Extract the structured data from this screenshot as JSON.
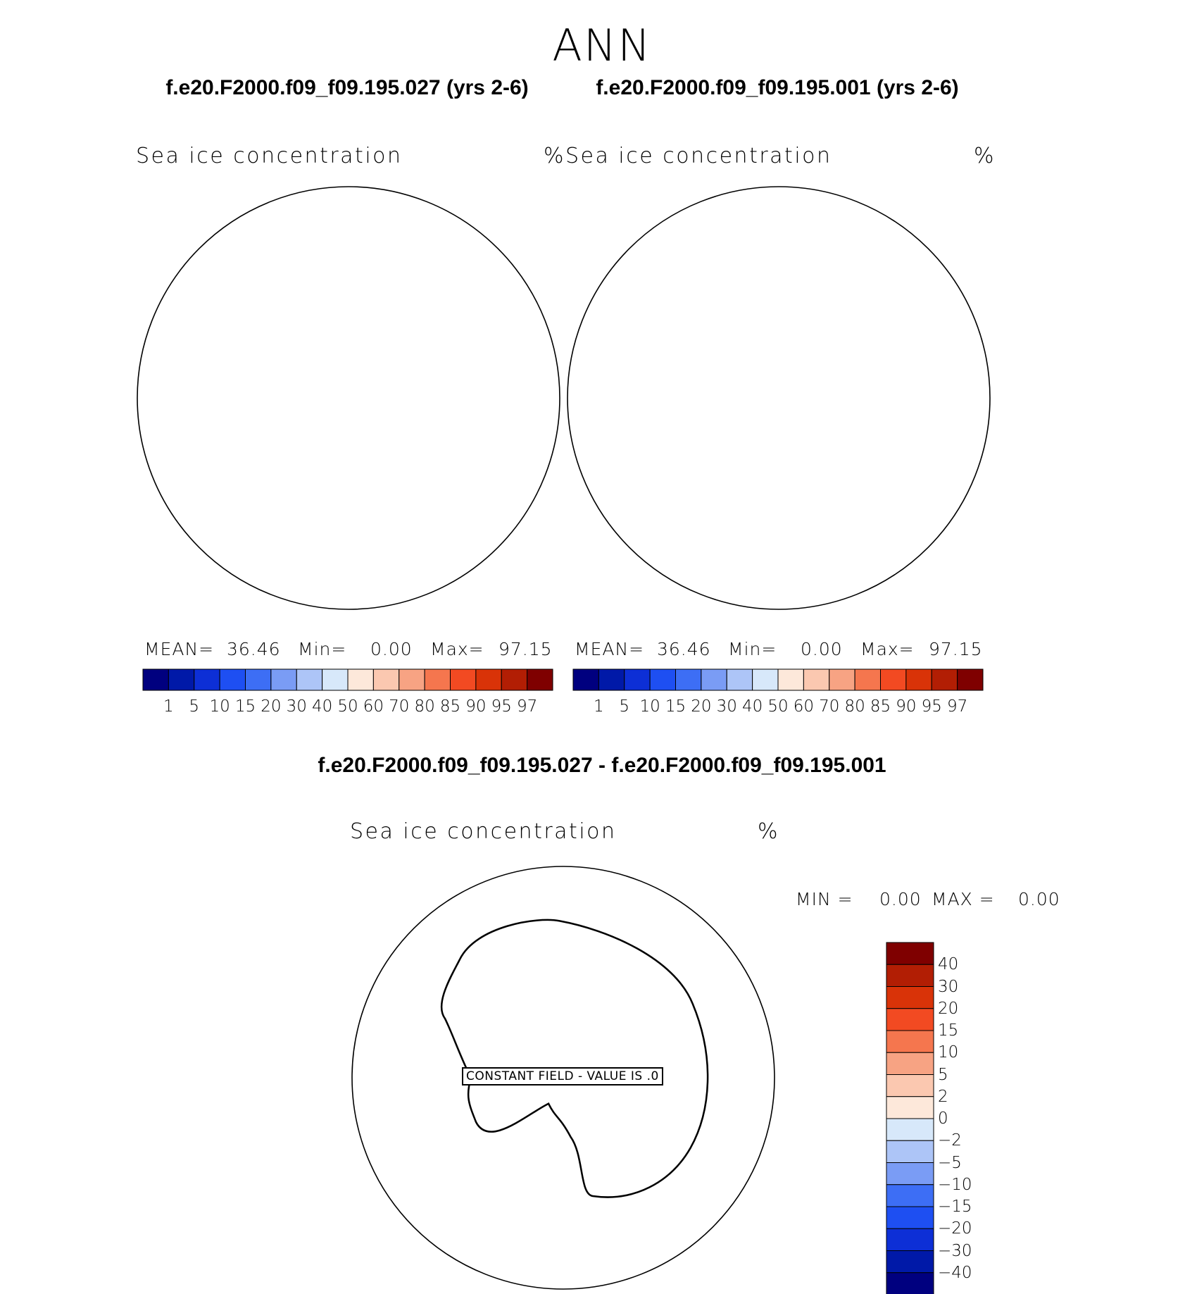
{
  "title": "ANN",
  "panels": [
    {
      "case_title": "f.e20.F2000.f09_f09.195.027 (yrs 2-6)",
      "var_label": "Sea ice concentration",
      "units": "%",
      "stats": {
        "mean_label": "MEAN=",
        "mean": "36.46",
        "min_label": "Min=",
        "min": "0.00",
        "max_label": "Max=",
        "max": "97.15"
      }
    },
    {
      "case_title": "f.e20.F2000.f09_f09.195.001 (yrs 2-6)",
      "var_label": "Sea ice concentration",
      "units": "%",
      "stats": {
        "mean_label": "MEAN=",
        "mean": "36.46",
        "min_label": "Min=",
        "min": "0.00",
        "max_label": "Max=",
        "max": "97.15"
      }
    }
  ],
  "diff": {
    "title": "f.e20.F2000.f09_f09.195.027 - f.e20.F2000.f09_f09.195.001",
    "var_label": "Sea ice concentration",
    "units": "%",
    "stats": {
      "min_label": "MIN =",
      "min": "0.00",
      "max_label": "MAX =",
      "max": "0.00"
    },
    "constant_text": "CONSTANT FIELD - VALUE IS .0"
  },
  "chart_data": {
    "type": "heatmap",
    "projection": "south-polar-stereographic",
    "field": "Sea ice concentration",
    "season": "ANN",
    "abs_levels": [
      "1",
      "5",
      "10",
      "15",
      "20",
      "30",
      "40",
      "50",
      "60",
      "70",
      "80",
      "85",
      "90",
      "95",
      "97"
    ],
    "abs_colors": [
      "#00007f",
      "#0019a8",
      "#0d2fd6",
      "#1e4ff2",
      "#3d6ef5",
      "#7a9cf5",
      "#adc5f7",
      "#d7e8fa",
      "#fde8da",
      "#fbc8b0",
      "#f7a383",
      "#f5764e",
      "#f24a22",
      "#d93308",
      "#b21e04",
      "#7f0000"
    ],
    "diff_levels": [
      "40",
      "30",
      "20",
      "15",
      "10",
      "5",
      "2",
      "0",
      "−2",
      "−5",
      "−10",
      "−15",
      "−20",
      "−30",
      "−40"
    ],
    "diff_colors": [
      "#7f0000",
      "#b21e04",
      "#d93308",
      "#f24a22",
      "#f5764e",
      "#f7a383",
      "#fbc8b0",
      "#fde8da",
      "#d7e8fa",
      "#adc5f7",
      "#7a9cf5",
      "#3d6ef5",
      "#1e4ff2",
      "#0d2fd6",
      "#0019a8",
      "#00007f"
    ],
    "panel_stats": [
      {
        "mean": 36.46,
        "min": 0.0,
        "max": 97.15
      },
      {
        "mean": 36.46,
        "min": 0.0,
        "max": 97.15
      }
    ],
    "diff_stats": {
      "min": 0.0,
      "max": 0.0,
      "constant_value": 0.0
    }
  }
}
